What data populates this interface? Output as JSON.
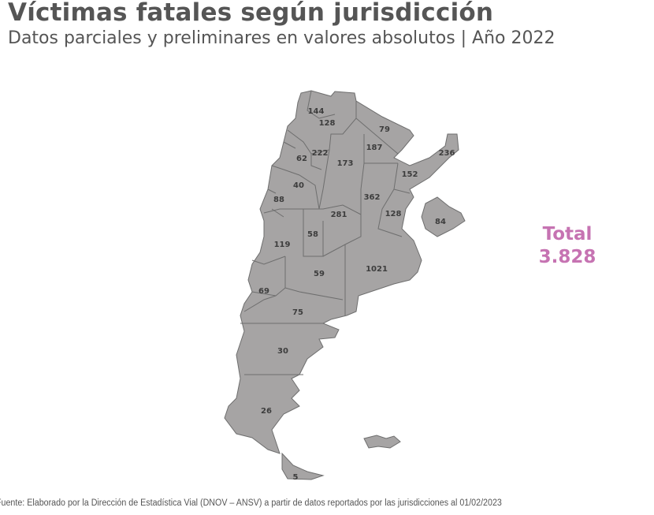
{
  "header": {
    "title": "Víctimas fatales según jurisdicción",
    "subtitle": "Datos parciales y preliminares en valores absolutos | Año 2022"
  },
  "map": {
    "fill_color": "#a6a4a4",
    "border_color": "#6e6e6e",
    "values": [
      "144",
      "128",
      "79",
      "187",
      "236",
      "62",
      "222",
      "173",
      "152",
      "40",
      "88",
      "362",
      "128",
      "281",
      "84",
      "58",
      "119",
      "1021",
      "59",
      "69",
      "75",
      "30",
      "26",
      "5"
    ]
  },
  "total": {
    "label": "Total",
    "value": "3.828",
    "color": "#c673b2"
  },
  "footer": {
    "source": "Fuente: Elaborado por la Dirección de Estadística Vial (DNOV – ANSV) a partir de datos reportados por las jurisdicciones al  01/02/2023"
  }
}
